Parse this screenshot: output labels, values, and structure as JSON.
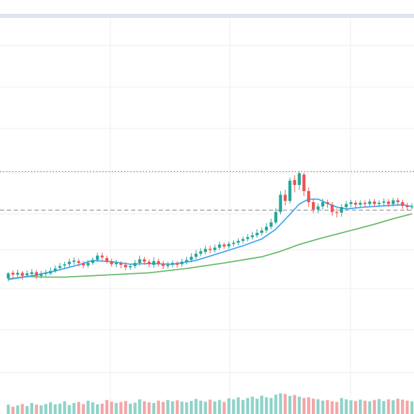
{
  "colors": {
    "up": "#26a69a",
    "down": "#ef5350",
    "ma_fast": "#42a5f5",
    "ma_slow": "#66bb6a",
    "grid": "#eeeeee",
    "top_bar": "#dde4ee",
    "high_line": "#ef5350",
    "last_price_line": "#9e9e9e",
    "volume_up": "#8fd3c8",
    "volume_down": "#f4a6a6"
  },
  "chart_data": {
    "type": "candlestick",
    "title": "",
    "xlabel": "",
    "ylabel": "",
    "x_range": [
      0,
      86
    ],
    "ylim": [
      400,
      1000
    ],
    "grid": true,
    "legend": "none",
    "reference_lines": [
      {
        "kind": "dotted",
        "value": 750
      },
      {
        "kind": "dashed",
        "value": 687
      }
    ],
    "candles": [
      [
        0,
        576,
        584,
        571,
        586
      ],
      [
        1,
        585,
        582,
        576,
        589
      ],
      [
        2,
        582,
        585,
        578,
        590
      ],
      [
        3,
        585,
        580,
        574,
        588
      ],
      [
        4,
        581,
        584,
        577,
        589
      ],
      [
        5,
        583,
        586,
        579,
        591
      ],
      [
        6,
        586,
        580,
        575,
        590
      ],
      [
        7,
        580,
        583,
        576,
        588
      ],
      [
        8,
        583,
        585,
        579,
        590
      ],
      [
        9,
        584,
        588,
        581,
        594
      ],
      [
        10,
        588,
        592,
        585,
        597
      ],
      [
        11,
        593,
        596,
        589,
        601
      ],
      [
        12,
        597,
        599,
        593,
        603
      ],
      [
        13,
        599,
        603,
        595,
        608
      ],
      [
        14,
        603,
        605,
        598,
        610
      ],
      [
        15,
        604,
        601,
        595,
        608
      ],
      [
        16,
        600,
        597,
        592,
        604
      ],
      [
        17,
        597,
        601,
        593,
        606
      ],
      [
        18,
        601,
        606,
        598,
        610
      ],
      [
        19,
        606,
        613,
        603,
        618
      ],
      [
        20,
        613,
        610,
        605,
        618
      ],
      [
        21,
        609,
        604,
        600,
        613
      ],
      [
        22,
        604,
        599,
        595,
        608
      ],
      [
        23,
        599,
        601,
        594,
        606
      ],
      [
        24,
        601,
        598,
        592,
        604
      ],
      [
        25,
        598,
        594,
        589,
        602
      ],
      [
        26,
        594,
        596,
        590,
        600
      ],
      [
        27,
        596,
        601,
        592,
        606
      ],
      [
        28,
        601,
        607,
        597,
        613
      ],
      [
        29,
        607,
        603,
        598,
        611
      ],
      [
        30,
        603,
        599,
        594,
        607
      ],
      [
        31,
        598,
        604,
        593,
        610
      ],
      [
        32,
        604,
        600,
        595,
        608
      ],
      [
        33,
        600,
        596,
        591,
        604
      ],
      [
        34,
        596,
        598,
        592,
        603
      ],
      [
        35,
        598,
        601,
        594,
        605
      ],
      [
        36,
        601,
        598,
        593,
        604
      ],
      [
        37,
        599,
        603,
        595,
        608
      ],
      [
        38,
        603,
        606,
        599,
        611
      ],
      [
        39,
        606,
        611,
        602,
        617
      ],
      [
        40,
        611,
        616,
        607,
        622
      ],
      [
        41,
        616,
        620,
        612,
        625
      ],
      [
        42,
        619,
        624,
        615,
        629
      ],
      [
        43,
        624,
        622,
        617,
        629
      ],
      [
        44,
        622,
        626,
        618,
        631
      ],
      [
        45,
        626,
        631,
        622,
        636
      ],
      [
        46,
        631,
        628,
        624,
        634
      ],
      [
        47,
        628,
        632,
        624,
        636
      ],
      [
        48,
        632,
        634,
        628,
        638
      ],
      [
        49,
        634,
        637,
        630,
        641
      ],
      [
        50,
        637,
        640,
        633,
        644
      ],
      [
        51,
        640,
        643,
        636,
        648
      ],
      [
        52,
        643,
        646,
        639,
        652
      ],
      [
        53,
        646,
        650,
        642,
        656
      ],
      [
        54,
        650,
        654,
        646,
        659
      ],
      [
        55,
        654,
        660,
        650,
        666
      ],
      [
        56,
        660,
        667,
        656,
        673
      ],
      [
        57,
        667,
        684,
        664,
        690
      ],
      [
        58,
        684,
        712,
        680,
        718
      ],
      [
        59,
        712,
        702,
        695,
        720
      ],
      [
        60,
        702,
        735,
        698,
        740
      ],
      [
        61,
        736,
        728,
        716,
        744
      ],
      [
        62,
        728,
        747,
        720,
        750
      ],
      [
        63,
        745,
        718,
        710,
        748
      ],
      [
        64,
        718,
        700,
        692,
        724
      ],
      [
        65,
        700,
        688,
        682,
        706
      ],
      [
        66,
        688,
        693,
        682,
        698
      ],
      [
        67,
        693,
        700,
        688,
        706
      ],
      [
        68,
        700,
        697,
        691,
        704
      ],
      [
        69,
        696,
        684,
        678,
        700
      ],
      [
        70,
        684,
        683,
        675,
        690
      ],
      [
        71,
        683,
        692,
        676,
        697
      ],
      [
        72,
        692,
        697,
        688,
        702
      ],
      [
        73,
        697,
        700,
        692,
        704
      ],
      [
        74,
        699,
        696,
        691,
        703
      ],
      [
        75,
        696,
        699,
        692,
        703
      ],
      [
        76,
        699,
        697,
        692,
        703
      ],
      [
        77,
        697,
        701,
        693,
        705
      ],
      [
        78,
        701,
        697,
        692,
        705
      ],
      [
        79,
        697,
        699,
        693,
        703
      ],
      [
        80,
        699,
        701,
        694,
        706
      ],
      [
        81,
        701,
        697,
        692,
        705
      ],
      [
        82,
        697,
        703,
        693,
        707
      ],
      [
        83,
        703,
        700,
        694,
        707
      ],
      [
        84,
        700,
        694,
        689,
        704
      ],
      [
        85,
        694,
        692,
        686,
        699
      ],
      [
        86,
        692,
        693,
        688,
        698
      ]
    ],
    "ma_fast": [
      [
        0,
        574
      ],
      [
        5,
        580
      ],
      [
        10,
        588
      ],
      [
        15,
        598
      ],
      [
        18,
        605
      ],
      [
        22,
        603
      ],
      [
        26,
        599
      ],
      [
        30,
        600
      ],
      [
        35,
        599
      ],
      [
        40,
        605
      ],
      [
        45,
        617
      ],
      [
        50,
        629
      ],
      [
        54,
        640
      ],
      [
        57,
        656
      ],
      [
        60,
        680
      ],
      [
        62,
        697
      ],
      [
        64,
        705
      ],
      [
        66,
        705
      ],
      [
        68,
        698
      ],
      [
        70,
        692
      ],
      [
        72,
        689
      ],
      [
        76,
        692
      ],
      [
        80,
        694
      ],
      [
        84,
        696
      ],
      [
        86,
        693
      ]
    ],
    "ma_slow": [
      [
        0,
        575
      ],
      [
        4,
        579
      ],
      [
        8,
        578
      ],
      [
        12,
        578
      ],
      [
        20,
        581
      ],
      [
        30,
        585
      ],
      [
        38,
        592
      ],
      [
        46,
        601
      ],
      [
        54,
        611
      ],
      [
        58,
        620
      ],
      [
        62,
        631
      ],
      [
        66,
        640
      ],
      [
        70,
        648
      ],
      [
        74,
        656
      ],
      [
        78,
        664
      ],
      [
        82,
        673
      ],
      [
        86,
        681
      ]
    ],
    "volume": [
      28,
      22,
      26,
      30,
      24,
      33,
      28,
      26,
      30,
      35,
      29,
      31,
      38,
      27,
      33,
      36,
      30,
      40,
      35,
      29,
      31,
      42,
      37,
      33,
      36,
      39,
      31,
      34,
      44,
      38,
      35,
      33,
      40,
      36,
      42,
      38,
      41,
      37,
      35,
      39,
      45,
      40,
      37,
      43,
      38,
      42,
      36,
      47,
      44,
      50,
      42,
      48,
      52,
      46,
      55,
      50,
      48,
      58,
      62,
      60,
      54,
      57,
      52,
      48,
      50,
      46,
      44,
      40,
      42,
      38,
      36,
      48,
      44,
      41,
      39,
      43,
      40,
      38,
      42,
      45,
      39,
      44,
      41,
      46,
      43,
      40,
      38
    ]
  }
}
